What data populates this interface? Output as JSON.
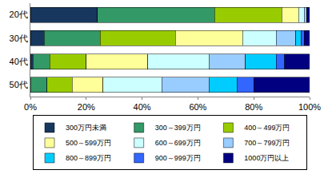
{
  "chart_data": {
    "type": "bar",
    "orientation": "horizontal",
    "stacked": true,
    "categories": [
      "20代",
      "30代",
      "40代",
      "50代"
    ],
    "series": [
      {
        "name": "300万円未満",
        "color": "#17375e",
        "values": [
          24,
          5,
          1,
          0
        ]
      },
      {
        "name": "300～399万円",
        "color": "#339966",
        "values": [
          42,
          20,
          6,
          6
        ]
      },
      {
        "name": "400～499万円",
        "color": "#99cc00",
        "values": [
          24,
          27,
          13,
          9
        ]
      },
      {
        "name": "500～599万円",
        "color": "#ffff99",
        "values": [
          6,
          24,
          22,
          11
        ]
      },
      {
        "name": "600～699万円",
        "color": "#ccffff",
        "values": [
          2,
          12,
          22,
          21
        ]
      },
      {
        "name": "700～799万円",
        "color": "#99ccff",
        "values": [
          1,
          7,
          13,
          17
        ]
      },
      {
        "name": "800～899万円",
        "color": "#00ccff",
        "values": [
          0,
          2,
          11,
          10
        ]
      },
      {
        "name": "900～999万円",
        "color": "#3366ff",
        "values": [
          0,
          1,
          3,
          6
        ]
      },
      {
        "name": "1000万円以上",
        "color": "#000080",
        "values": [
          1,
          2,
          9,
          20
        ]
      }
    ],
    "xlim": [
      0,
      100
    ],
    "xticks": [
      {
        "value": 0,
        "label": "0%"
      },
      {
        "value": 20,
        "label": "20%"
      },
      {
        "value": 40,
        "label": "40%"
      },
      {
        "value": 60,
        "label": "60%"
      },
      {
        "value": 80,
        "label": "80%"
      },
      {
        "value": 100,
        "label": "100%"
      }
    ],
    "grid": false,
    "legend": "bottom"
  }
}
